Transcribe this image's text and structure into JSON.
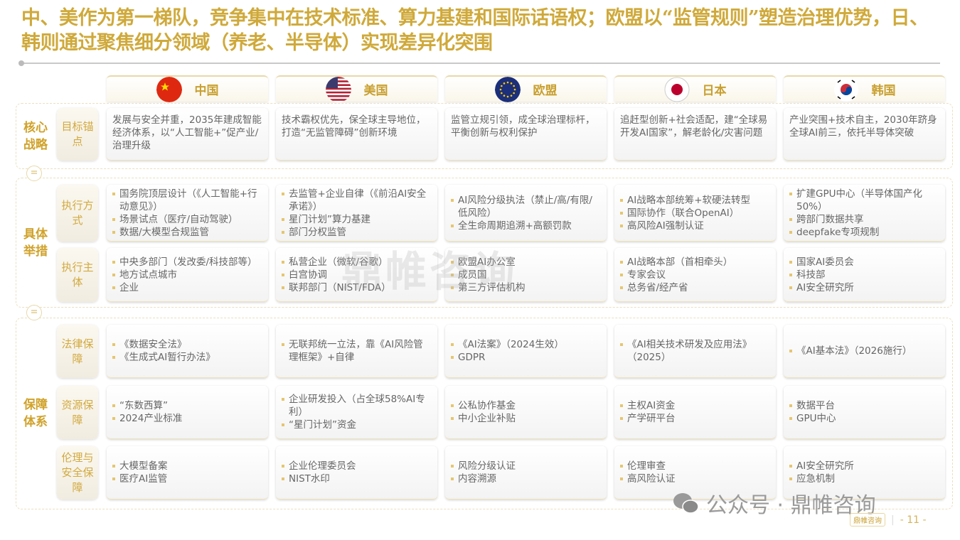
{
  "title": "中、美作为第一梯队，竞争集中在技术标准、算力基建和国际话语权；欧盟以“监管规则”塑造治理优势，日、韩则通过聚焦细分领域（养老、半导体）实现差异化突围",
  "columns": [
    {
      "name": "中国",
      "flag": "china-flag-icon"
    },
    {
      "name": "美国",
      "flag": "usa-flag-icon"
    },
    {
      "name": "欧盟",
      "flag": "eu-flag-icon"
    },
    {
      "name": "日本",
      "flag": "japan-flag-icon"
    },
    {
      "name": "韩国",
      "flag": "korea-flag-icon"
    }
  ],
  "sections": [
    {
      "label": "核心战略",
      "rows": [
        {
          "label": "目标锚点",
          "para": true,
          "cells": [
            [
              "发展与安全并重，2035年建成智能经济体系，以“人工智能+”促产业/治理升级"
            ],
            [
              "技术霸权优先，保全球主导地位，打造“无监管障碍”创新环境"
            ],
            [
              "监管立规引领，成全球治理标杆，平衡创新与权利保护"
            ],
            [
              "追赶型创新+社会适配，建“全球易开发AI国家”，解老龄化/灾害问题"
            ],
            [
              "产业突围+技术自主，2030年跻身全球AI前三，依托半导体突破"
            ]
          ]
        }
      ]
    },
    {
      "label": "具体举措",
      "rows": [
        {
          "label": "执行方式",
          "cells": [
            [
              "国务院顶层设计（《人工智能+行动意见》）",
              "场景试点（医疗/自动驾驶）",
              "数据/大模型合规监管"
            ],
            [
              "去监管+企业自律（《前沿AI安全承诺》）",
              "星门计划”算力基建",
              "部门分权监管"
            ],
            [
              "AI风险分级执法（禁止/高/有限/低风险）",
              "全生命周期追溯+高额罚款"
            ],
            [
              "AI战略本部统筹+软硬法转型",
              "国际协作（联合OpenAI）",
              "高风险AI强制认证"
            ],
            [
              "扩建GPU中心（半导体国产化50%）",
              "跨部门数据共享",
              "deepfake专项规制"
            ]
          ]
        },
        {
          "label": "执行主体",
          "cells": [
            [
              "中央多部门（发改委/科技部等）",
              "地方试点城市",
              "企业"
            ],
            [
              "私营企业（微软/谷歌）",
              "白宫协调",
              "联邦部门（NIST/FDA）"
            ],
            [
              "欧盟AI办公室",
              "成员国",
              "第三方评估机构"
            ],
            [
              "AI战略本部（首相牵头）",
              "专家会议",
              "总务省/经产省"
            ],
            [
              "国家AI委员会",
              "科技部",
              "AI安全研究所"
            ]
          ]
        }
      ]
    },
    {
      "label": "保障体系",
      "rows": [
        {
          "label": "法律保障",
          "cells": [
            [
              "《数据安全法》",
              "《生成式AI暂行办法》"
            ],
            [
              "无联邦统一立法，靠《AI风险管理框架》+自律"
            ],
            [
              "《AI法案》（2024生效）",
              "GDPR"
            ],
            [
              "《AI相关技术研发及应用法》（2025）"
            ],
            [
              "《AI基本法》（2026施行）"
            ]
          ]
        },
        {
          "label": "资源保障",
          "cells": [
            [
              "“东数西算”",
              "2024产业标准"
            ],
            [
              "企业研发投入（占全球58%AI专利）",
              "“星门计划”资金"
            ],
            [
              "公私协作基金",
              "中小企业补贴"
            ],
            [
              "主权AI资金",
              "产学研平台"
            ],
            [
              "数据平台",
              "GPU中心"
            ]
          ]
        },
        {
          "label": "伦理与安全保障",
          "cells": [
            [
              "大模型备案",
              "医疗AI监管"
            ],
            [
              "企业伦理委员会",
              "NIST水印"
            ],
            [
              "风险分级认证",
              "内容溯源"
            ],
            [
              "伦理审查",
              "高风险认证"
            ],
            [
              "AI安全研究所",
              "应急机制"
            ]
          ]
        }
      ]
    }
  ],
  "watermark": "鼎帷咨询",
  "footer": {
    "wechat": "公众号 · 鼎帷咨询",
    "logo": "鼎帷咨询",
    "page": "- 11 -"
  },
  "colors": {
    "accent": "#cfa93a"
  }
}
